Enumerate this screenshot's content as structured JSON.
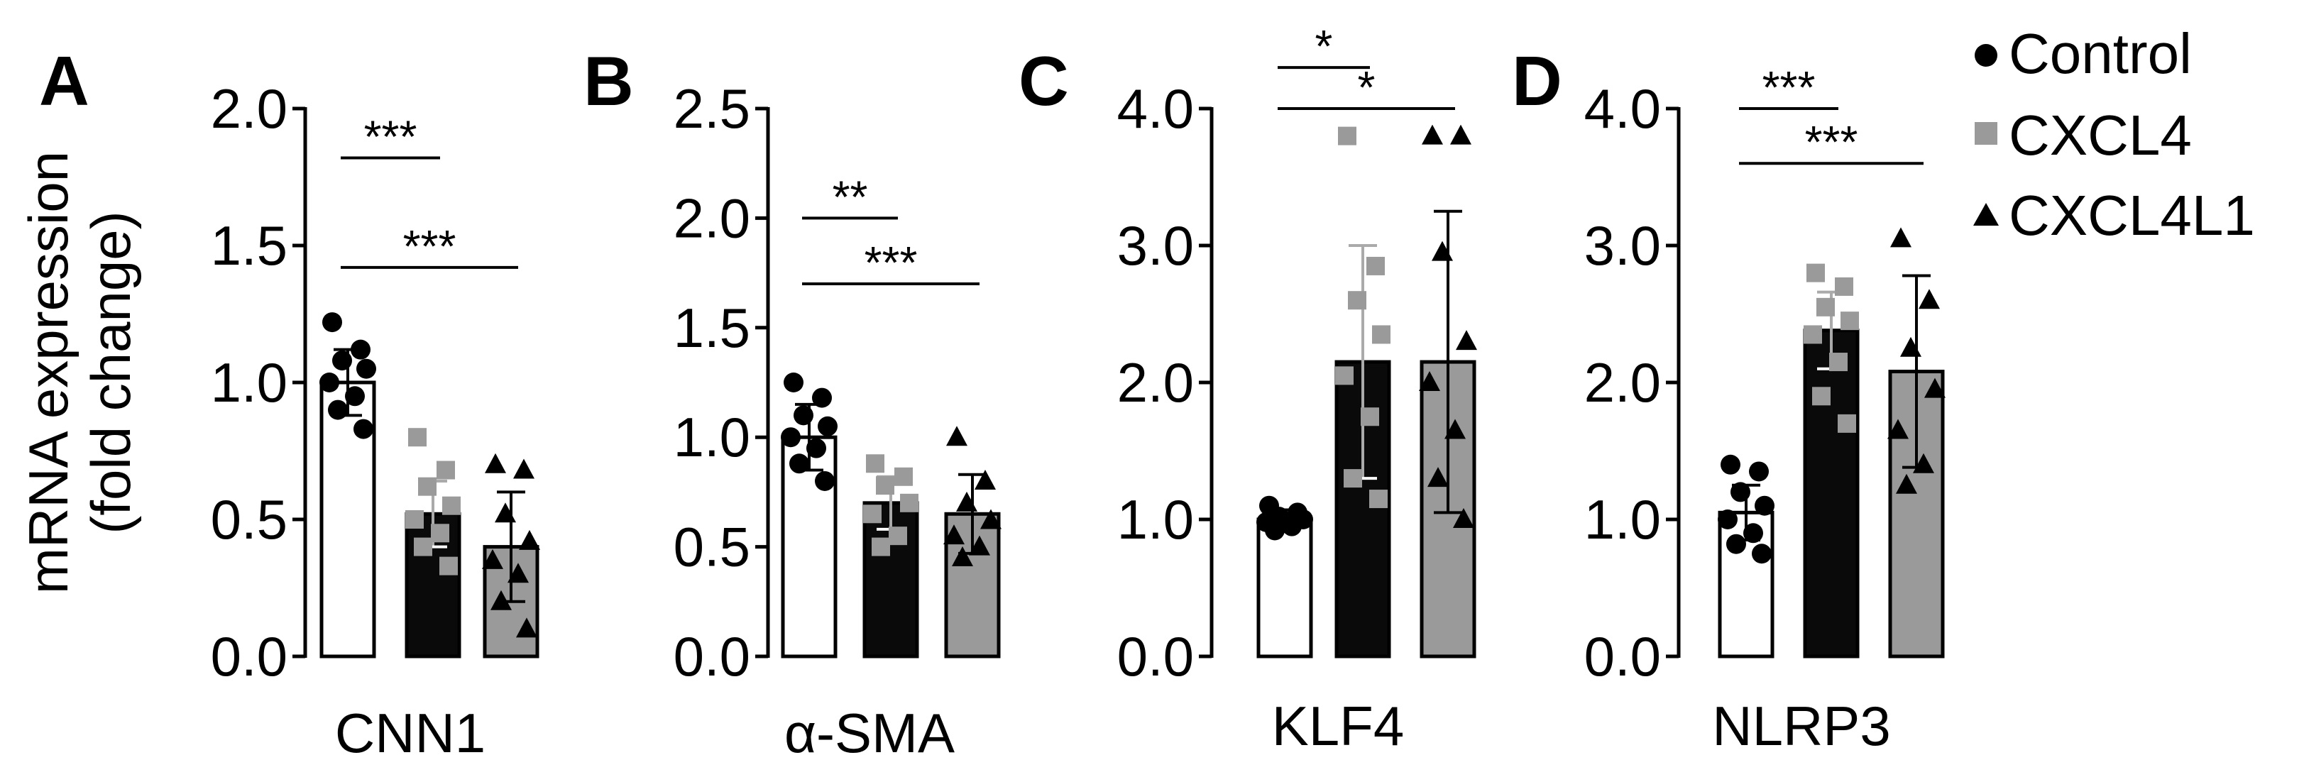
{
  "figure": {
    "ylabel_line1": "mRNA expression",
    "ylabel_line2": "(fold change)",
    "legend": {
      "position": "top-right",
      "entries": [
        {
          "label": "Control",
          "marker": "circle",
          "color": "#000000"
        },
        {
          "label": "CXCL4",
          "marker": "square",
          "color": "#9a9a9a"
        },
        {
          "label": "CXCL4L1",
          "marker": "triangle",
          "color": "#000000"
        }
      ]
    },
    "colors": {
      "control_fill": "#ffffff",
      "cxcl4_fill": "#0a0a0a",
      "cxcl4l1_fill": "#9a9a9a",
      "point_black": "#000000",
      "point_gray": "#9a9a9a"
    }
  },
  "chart_data": [
    {
      "type": "bar",
      "panel_letter": "A",
      "xlabel": "CNN1",
      "ylim": [
        0,
        2.0
      ],
      "yticks": [
        "0.0",
        "0.5",
        "1.0",
        "1.5",
        "2.0"
      ],
      "tick_values": [
        0,
        0.5,
        1.0,
        1.5,
        2.0
      ],
      "categories": [
        "Control",
        "CXCL4",
        "CXCL4L1"
      ],
      "series": [
        {
          "name": "Control",
          "mean": 1.0,
          "sd": 0.12,
          "points": [
            1.22,
            1.12,
            1.08,
            1.05,
            1.0,
            0.95,
            0.9,
            0.83
          ]
        },
        {
          "name": "CXCL4",
          "mean": 0.52,
          "sd": 0.12,
          "points": [
            0.8,
            0.68,
            0.62,
            0.55,
            0.5,
            0.45,
            0.4,
            0.33
          ]
        },
        {
          "name": "CXCL4L1",
          "mean": 0.4,
          "sd": 0.2,
          "points": [
            0.7,
            0.68,
            0.52,
            0.42,
            0.35,
            0.3,
            0.2,
            0.1
          ]
        }
      ],
      "significance": [
        {
          "from": 0,
          "to": 1,
          "label": "***",
          "y": 1.82
        },
        {
          "from": 0,
          "to": 2,
          "label": "***",
          "y": 1.42
        }
      ]
    },
    {
      "type": "bar",
      "panel_letter": "B",
      "xlabel": "α-SMA",
      "ylim": [
        0,
        2.5
      ],
      "yticks": [
        "0.0",
        "0.5",
        "1.0",
        "1.5",
        "2.0",
        "2.5"
      ],
      "tick_values": [
        0,
        0.5,
        1.0,
        1.5,
        2.0,
        2.5
      ],
      "categories": [
        "Control",
        "CXCL4",
        "CXCL4L1"
      ],
      "series": [
        {
          "name": "Control",
          "mean": 1.0,
          "sd": 0.15,
          "points": [
            1.25,
            1.18,
            1.1,
            1.05,
            1.0,
            0.95,
            0.88,
            0.8
          ]
        },
        {
          "name": "CXCL4",
          "mean": 0.7,
          "sd": 0.12,
          "points": [
            0.88,
            0.82,
            0.78,
            0.7,
            0.65,
            0.55,
            0.5
          ]
        },
        {
          "name": "CXCL4L1",
          "mean": 0.65,
          "sd": 0.18,
          "points": [
            1.0,
            0.8,
            0.7,
            0.62,
            0.55,
            0.5,
            0.45
          ]
        }
      ],
      "significance": [
        {
          "from": 0,
          "to": 1,
          "label": "**",
          "y": 2.0
        },
        {
          "from": 0,
          "to": 2,
          "label": "***",
          "y": 1.7
        }
      ]
    },
    {
      "type": "bar",
      "panel_letter": "C",
      "xlabel": "KLF4",
      "ylim": [
        0,
        4.0
      ],
      "yticks": [
        "0.0",
        "1.0",
        "2.0",
        "3.0",
        "4.0"
      ],
      "tick_values": [
        0,
        1.0,
        2.0,
        3.0,
        4.0
      ],
      "categories": [
        "Control",
        "CXCL4",
        "CXCL4L1"
      ],
      "series": [
        {
          "name": "Control",
          "mean": 1.0,
          "sd": 0.07,
          "points": [
            1.1,
            1.05,
            1.02,
            1.0,
            0.98,
            0.95,
            0.92
          ]
        },
        {
          "name": "CXCL4",
          "mean": 2.15,
          "sd": 0.85,
          "points": [
            3.8,
            2.85,
            2.6,
            2.35,
            2.05,
            1.75,
            1.3,
            1.15
          ]
        },
        {
          "name": "CXCL4L1",
          "mean": 2.15,
          "sd": 1.1,
          "points": [
            3.8,
            3.8,
            2.95,
            2.3,
            2.0,
            1.65,
            1.3,
            1.0
          ]
        }
      ],
      "significance": [
        {
          "from": 0,
          "to": 1,
          "label": "*",
          "y": 4.3
        },
        {
          "from": 0,
          "to": 2,
          "label": "*",
          "y": 4.0
        }
      ]
    },
    {
      "type": "bar",
      "panel_letter": "D",
      "xlabel": "NLRP3",
      "ylim": [
        0,
        4.0
      ],
      "yticks": [
        "0.0",
        "1.0",
        "2.0",
        "3.0",
        "4.0"
      ],
      "tick_values": [
        0,
        1.0,
        2.0,
        3.0,
        4.0
      ],
      "categories": [
        "Control",
        "CXCL4",
        "CXCL4L1"
      ],
      "series": [
        {
          "name": "Control",
          "mean": 1.05,
          "sd": 0.2,
          "points": [
            1.4,
            1.35,
            1.2,
            1.1,
            1.0,
            0.9,
            0.82,
            0.75
          ]
        },
        {
          "name": "CXCL4",
          "mean": 2.38,
          "sd": 0.28,
          "points": [
            2.8,
            2.7,
            2.55,
            2.45,
            2.35,
            2.15,
            1.9,
            1.7
          ]
        },
        {
          "name": "CXCL4L1",
          "mean": 2.08,
          "sd": 0.7,
          "points": [
            3.05,
            2.6,
            2.25,
            1.95,
            1.65,
            1.4,
            1.25
          ]
        }
      ],
      "significance": [
        {
          "from": 0,
          "to": 1,
          "label": "***",
          "y": 4.0
        },
        {
          "from": 0,
          "to": 2,
          "label": "***",
          "y": 3.6
        }
      ]
    }
  ]
}
